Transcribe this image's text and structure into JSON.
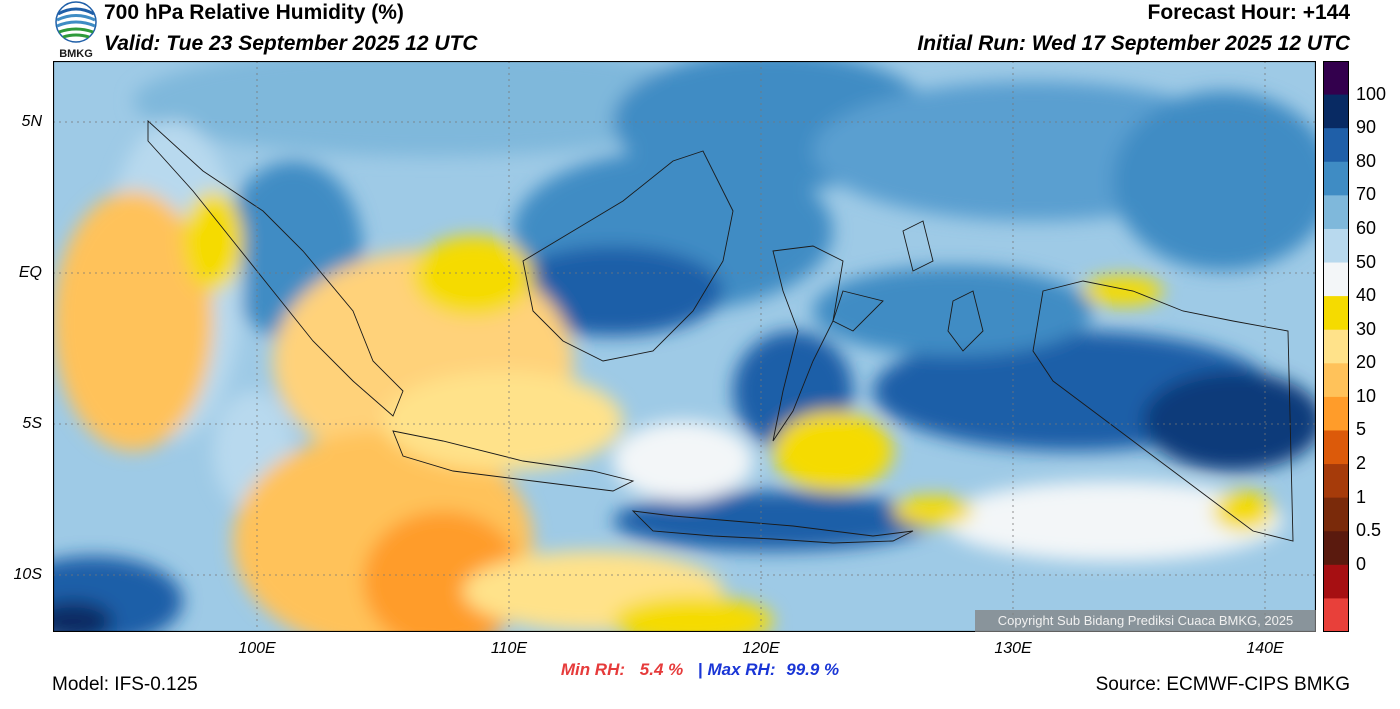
{
  "header": {
    "title": "700 hPa Relative Humidity (%)",
    "valid": "Valid: Tue 23 September 2025 12 UTC",
    "forecast_hour": "Forecast Hour: +144",
    "initial_run": "Initial Run: Wed 17 September 2025 12 UTC",
    "logo_text": "BMKG"
  },
  "map": {
    "lat_labels": [
      "5N",
      "EQ",
      "5S",
      "10S"
    ],
    "lon_labels": [
      "100E",
      "110E",
      "120E",
      "130E",
      "140E"
    ],
    "copyright": "Copyright Sub Bidang Prediksi Cuaca BMKG, 2025"
  },
  "colorbar": {
    "labels": [
      "100",
      "90",
      "80",
      "70",
      "60",
      "50",
      "40",
      "30",
      "20",
      "10",
      "5",
      "2",
      "1",
      "0.5",
      "0"
    ],
    "colors": [
      "#33004d",
      "#082a63",
      "#1f5fa8",
      "#3f8cc4",
      "#7fb8db",
      "#b8d9ee",
      "#f3f6f8",
      "#f5db00",
      "#ffe28a",
      "#ffc25a",
      "#ff9c2a",
      "#dc5a0a",
      "#a63b0a",
      "#7a2a0a",
      "#5a1a0e",
      "#a60f12",
      "#e8403a"
    ]
  },
  "stats": {
    "min_label": "Min RH:",
    "min_value": "5.4 %",
    "separator": "|",
    "max_label": "Max RH:",
    "max_value": "99.9 %"
  },
  "footer": {
    "model": "Model: IFS-0.125",
    "source": "Source: ECMWF-CIPS BMKG"
  }
}
